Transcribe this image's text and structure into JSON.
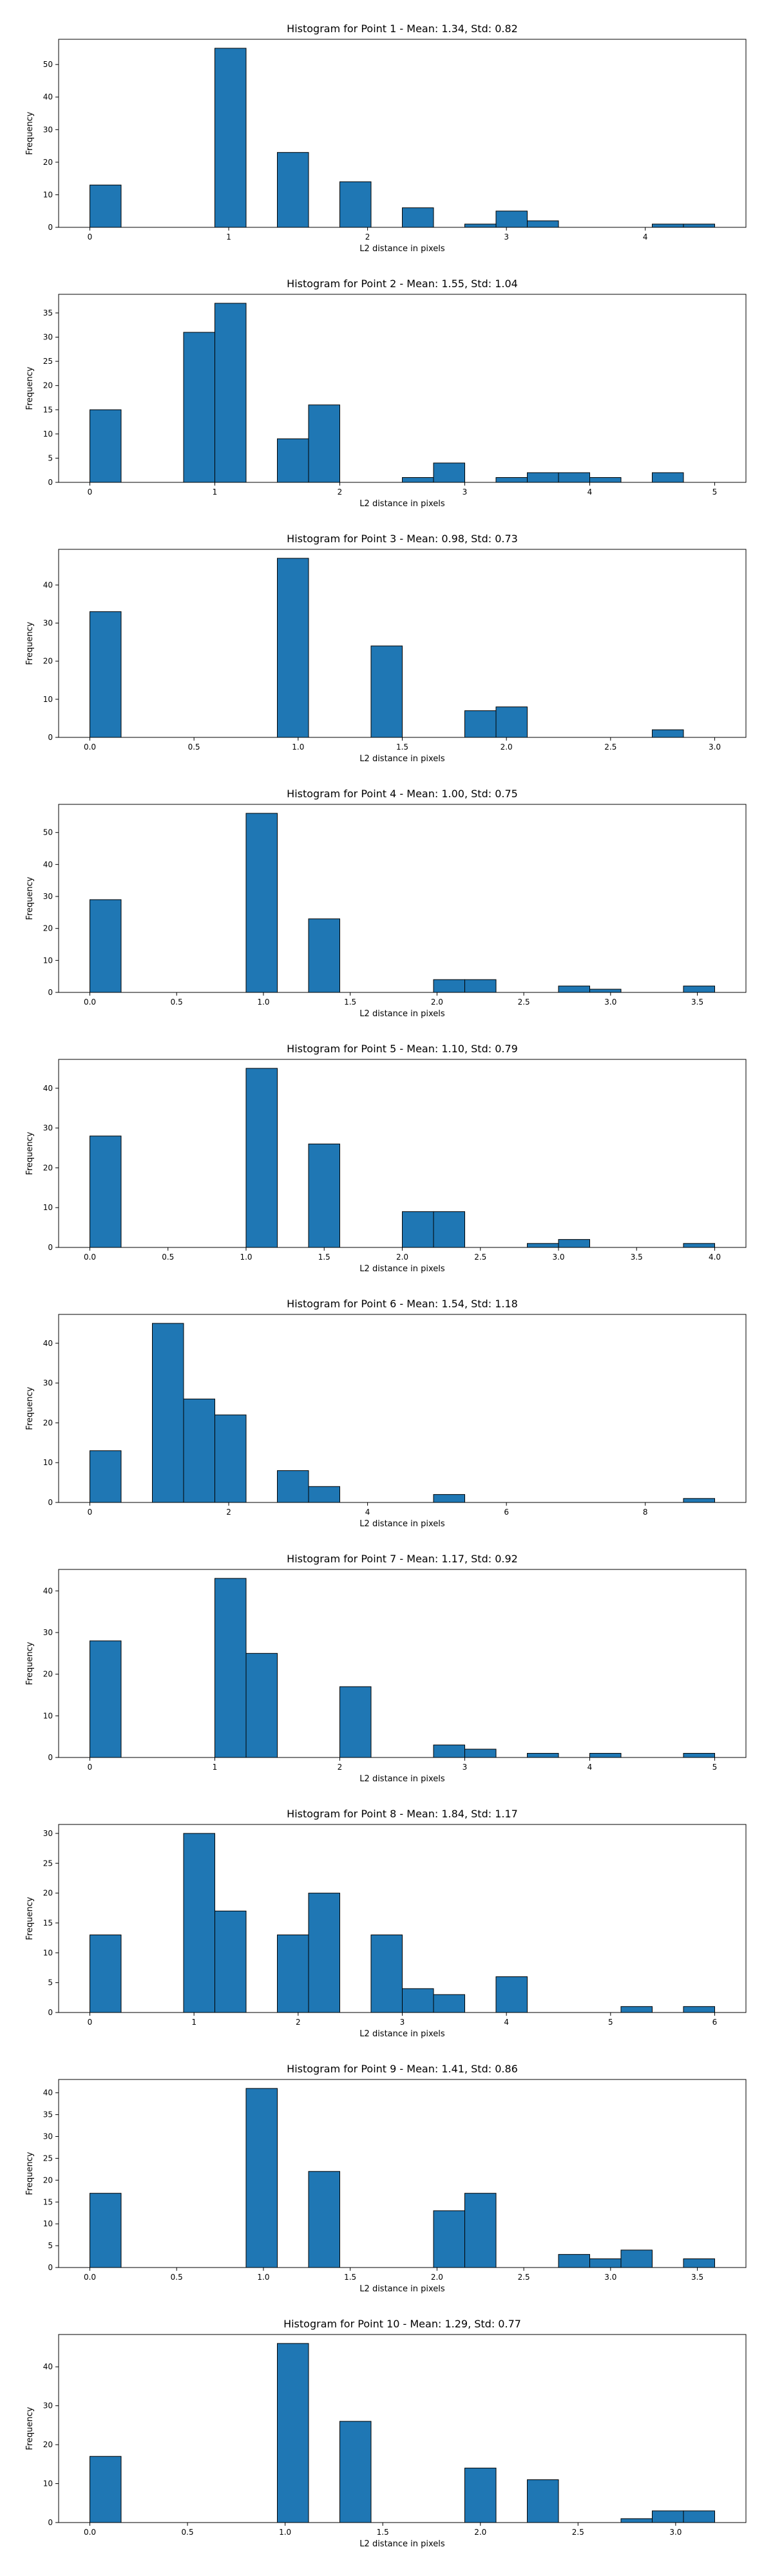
{
  "colors": {
    "bar": "#1f77b4",
    "edge": "#000000"
  },
  "chart_data": [
    {
      "type": "bar",
      "title": "Histogram for Point 1 - Mean: 1.34, Std: 0.82",
      "xlabel": "L2 distance in pixels",
      "ylabel": "Frequency",
      "xlim": [
        -0.225,
        4.725
      ],
      "ylim": [
        0,
        57.75
      ],
      "xticks": [
        0,
        1,
        2,
        3,
        4
      ],
      "xtick_labels": [
        "0",
        "1",
        "2",
        "3",
        "4"
      ],
      "yticks": [
        0,
        10,
        20,
        30,
        40,
        50
      ],
      "bin_edges": [
        0.0,
        0.225,
        0.45,
        0.675,
        0.9,
        1.125,
        1.35,
        1.575,
        1.8,
        2.025,
        2.25,
        2.475,
        2.7,
        2.925,
        3.15,
        3.375,
        3.6,
        3.825,
        4.05,
        4.275,
        4.5
      ],
      "values": [
        13,
        0,
        0,
        0,
        55,
        0,
        23,
        0,
        14,
        0,
        6,
        0,
        1,
        5,
        2,
        0,
        0,
        0,
        1,
        1
      ]
    },
    {
      "type": "bar",
      "title": "Histogram for Point 2 - Mean: 1.55, Std: 1.04",
      "xlabel": "L2 distance in pixels",
      "ylabel": "Frequency",
      "xlim": [
        -0.25,
        5.25
      ],
      "ylim": [
        0,
        38.85
      ],
      "xticks": [
        0,
        1,
        2,
        3,
        4,
        5
      ],
      "xtick_labels": [
        "0",
        "1",
        "2",
        "3",
        "4",
        "5"
      ],
      "yticks": [
        0,
        5,
        10,
        15,
        20,
        25,
        30,
        35
      ],
      "bin_edges": [
        0.0,
        0.25,
        0.5,
        0.75,
        1.0,
        1.25,
        1.5,
        1.75,
        2.0,
        2.25,
        2.5,
        2.75,
        3.0,
        3.25,
        3.5,
        3.75,
        4.0,
        4.25,
        4.5,
        4.75,
        5.0
      ],
      "values": [
        15,
        0,
        0,
        31,
        37,
        0,
        9,
        16,
        0,
        0,
        1,
        4,
        0,
        1,
        2,
        2,
        1,
        0,
        2,
        0
      ]
    },
    {
      "type": "bar",
      "title": "Histogram for Point 3 - Mean: 0.98, Std: 0.73",
      "xlabel": "L2 distance in pixels",
      "ylabel": "Frequency",
      "xlim": [
        -0.15,
        3.15
      ],
      "ylim": [
        0,
        49.35
      ],
      "xticks": [
        0,
        0.5,
        1,
        1.5,
        2,
        2.5,
        3
      ],
      "xtick_labels": [
        "0.0",
        "0.5",
        "1.0",
        "1.5",
        "2.0",
        "2.5",
        "3.0"
      ],
      "yticks": [
        0,
        10,
        20,
        30,
        40
      ],
      "bin_edges": [
        0.0,
        0.15,
        0.3,
        0.45,
        0.6,
        0.75,
        0.9,
        1.05,
        1.2,
        1.35,
        1.5,
        1.65,
        1.8,
        1.95,
        2.1,
        2.25,
        2.4,
        2.55,
        2.7,
        2.85,
        3.0
      ],
      "values": [
        33,
        0,
        0,
        0,
        0,
        0,
        47,
        0,
        0,
        24,
        0,
        0,
        7,
        8,
        0,
        0,
        0,
        0,
        2,
        0
      ]
    },
    {
      "type": "bar",
      "title": "Histogram for Point 4 - Mean: 1.00, Std: 0.75",
      "xlabel": "L2 distance in pixels",
      "ylabel": "Frequency",
      "xlim": [
        -0.18,
        3.78
      ],
      "ylim": [
        0,
        58.8
      ],
      "xticks": [
        0,
        0.5,
        1,
        1.5,
        2,
        2.5,
        3,
        3.5
      ],
      "xtick_labels": [
        "0.0",
        "0.5",
        "1.0",
        "1.5",
        "2.0",
        "2.5",
        "3.0",
        "3.5"
      ],
      "yticks": [
        0,
        10,
        20,
        30,
        40,
        50
      ],
      "bin_edges": [
        0.0,
        0.18,
        0.36,
        0.54,
        0.72,
        0.9,
        1.08,
        1.26,
        1.44,
        1.62,
        1.8,
        1.98,
        2.16,
        2.34,
        2.52,
        2.7,
        2.88,
        3.06,
        3.24,
        3.42,
        3.6
      ],
      "values": [
        29,
        0,
        0,
        0,
        0,
        56,
        0,
        23,
        0,
        0,
        0,
        4,
        4,
        0,
        0,
        2,
        1,
        0,
        0,
        2
      ]
    },
    {
      "type": "bar",
      "title": "Histogram for Point 5 - Mean: 1.10, Std: 0.79",
      "xlabel": "L2 distance in pixels",
      "ylabel": "Frequency",
      "xlim": [
        -0.2,
        4.2
      ],
      "ylim": [
        0,
        47.25
      ],
      "xticks": [
        0,
        0.5,
        1,
        1.5,
        2,
        2.5,
        3,
        3.5,
        4
      ],
      "xtick_labels": [
        "0.0",
        "0.5",
        "1.0",
        "1.5",
        "2.0",
        "2.5",
        "3.0",
        "3.5",
        "4.0"
      ],
      "yticks": [
        0,
        10,
        20,
        30,
        40
      ],
      "bin_edges": [
        0.0,
        0.2,
        0.4,
        0.6,
        0.8,
        1.0,
        1.2,
        1.4,
        1.6,
        1.8,
        2.0,
        2.2,
        2.4,
        2.6,
        2.8,
        3.0,
        3.2,
        3.4,
        3.6,
        3.8,
        4.0
      ],
      "values": [
        28,
        0,
        0,
        0,
        0,
        45,
        0,
        26,
        0,
        0,
        9,
        9,
        0,
        0,
        1,
        2,
        0,
        0,
        0,
        1
      ]
    },
    {
      "type": "bar",
      "title": "Histogram for Point 6 - Mean: 1.54, Std: 1.18",
      "xlabel": "L2 distance in pixels",
      "ylabel": "Frequency",
      "xlim": [
        -0.45,
        9.45
      ],
      "ylim": [
        0,
        47.25
      ],
      "xticks": [
        0,
        2,
        4,
        6,
        8
      ],
      "xtick_labels": [
        "0",
        "2",
        "4",
        "6",
        "8"
      ],
      "yticks": [
        0,
        10,
        20,
        30,
        40
      ],
      "bin_edges": [
        0.0,
        0.45,
        0.9,
        1.35,
        1.8,
        2.25,
        2.7,
        3.15,
        3.6,
        4.05,
        4.5,
        4.95,
        5.4,
        5.85,
        6.3,
        6.75,
        7.2,
        7.65,
        8.1,
        8.55,
        9.0
      ],
      "values": [
        13,
        0,
        45,
        26,
        22,
        0,
        8,
        4,
        0,
        0,
        0,
        2,
        0,
        0,
        0,
        0,
        0,
        0,
        0,
        1
      ]
    },
    {
      "type": "bar",
      "title": "Histogram for Point 7 - Mean: 1.17, Std: 0.92",
      "xlabel": "L2 distance in pixels",
      "ylabel": "Frequency",
      "xlim": [
        -0.25,
        5.25
      ],
      "ylim": [
        0,
        45.15
      ],
      "xticks": [
        0,
        1,
        2,
        3,
        4,
        5
      ],
      "xtick_labels": [
        "0",
        "1",
        "2",
        "3",
        "4",
        "5"
      ],
      "yticks": [
        0,
        10,
        20,
        30,
        40
      ],
      "bin_edges": [
        0.0,
        0.25,
        0.5,
        0.75,
        1.0,
        1.25,
        1.5,
        1.75,
        2.0,
        2.25,
        2.5,
        2.75,
        3.0,
        3.25,
        3.5,
        3.75,
        4.0,
        4.25,
        4.5,
        4.75,
        5.0
      ],
      "values": [
        28,
        0,
        0,
        0,
        43,
        25,
        0,
        0,
        17,
        0,
        0,
        3,
        2,
        0,
        1,
        0,
        1,
        0,
        0,
        1
      ]
    },
    {
      "type": "bar",
      "title": "Histogram for Point 8 - Mean: 1.84, Std: 1.17",
      "xlabel": "L2 distance in pixels",
      "ylabel": "Frequency",
      "xlim": [
        -0.3,
        6.3
      ],
      "ylim": [
        0,
        31.5
      ],
      "xticks": [
        0,
        1,
        2,
        3,
        4,
        5,
        6
      ],
      "xtick_labels": [
        "0",
        "1",
        "2",
        "3",
        "4",
        "5",
        "6"
      ],
      "yticks": [
        0,
        5,
        10,
        15,
        20,
        25,
        30
      ],
      "bin_edges": [
        0.0,
        0.3,
        0.6,
        0.9,
        1.2,
        1.5,
        1.8,
        2.1,
        2.4,
        2.7,
        3.0,
        3.3,
        3.6,
        3.9,
        4.2,
        4.5,
        4.8,
        5.1,
        5.4,
        5.7,
        6.0
      ],
      "values": [
        13,
        0,
        0,
        30,
        17,
        0,
        13,
        20,
        0,
        13,
        4,
        3,
        0,
        6,
        0,
        0,
        0,
        1,
        0,
        1
      ]
    },
    {
      "type": "bar",
      "title": "Histogram for Point 9 - Mean: 1.41, Std: 0.86",
      "xlabel": "L2 distance in pixels",
      "ylabel": "Frequency",
      "xlim": [
        -0.18,
        3.78
      ],
      "ylim": [
        0,
        43.05
      ],
      "xticks": [
        0,
        0.5,
        1,
        1.5,
        2,
        2.5,
        3,
        3.5
      ],
      "xtick_labels": [
        "0.0",
        "0.5",
        "1.0",
        "1.5",
        "2.0",
        "2.5",
        "3.0",
        "3.5"
      ],
      "yticks": [
        0,
        5,
        10,
        15,
        20,
        25,
        30,
        35,
        40
      ],
      "bin_edges": [
        0.0,
        0.18,
        0.36,
        0.54,
        0.72,
        0.9,
        1.08,
        1.26,
        1.44,
        1.62,
        1.8,
        1.98,
        2.16,
        2.34,
        2.52,
        2.7,
        2.88,
        3.06,
        3.24,
        3.42,
        3.6
      ],
      "values": [
        17,
        0,
        0,
        0,
        0,
        41,
        0,
        22,
        0,
        0,
        0,
        13,
        17,
        0,
        0,
        3,
        2,
        4,
        0,
        2
      ]
    },
    {
      "type": "bar",
      "title": "Histogram for Point 10 - Mean: 1.29, Std: 0.77",
      "xlabel": "L2 distance in pixels",
      "ylabel": "Frequency",
      "xlim": [
        -0.16,
        3.36
      ],
      "ylim": [
        0,
        48.3
      ],
      "xticks": [
        0,
        0.5,
        1,
        1.5,
        2,
        2.5,
        3
      ],
      "xtick_labels": [
        "0.0",
        "0.5",
        "1.0",
        "1.5",
        "2.0",
        "2.5",
        "3.0"
      ],
      "yticks": [
        0,
        10,
        20,
        30,
        40
      ],
      "bin_edges": [
        0.0,
        0.16,
        0.32,
        0.48,
        0.64,
        0.8,
        0.96,
        1.12,
        1.28,
        1.44,
        1.6,
        1.76,
        1.92,
        2.08,
        2.24,
        2.4,
        2.56,
        2.72,
        2.88,
        3.04,
        3.2
      ],
      "values": [
        17,
        0,
        0,
        0,
        0,
        0,
        46,
        0,
        26,
        0,
        0,
        0,
        14,
        0,
        11,
        0,
        0,
        1,
        3,
        3
      ]
    }
  ]
}
